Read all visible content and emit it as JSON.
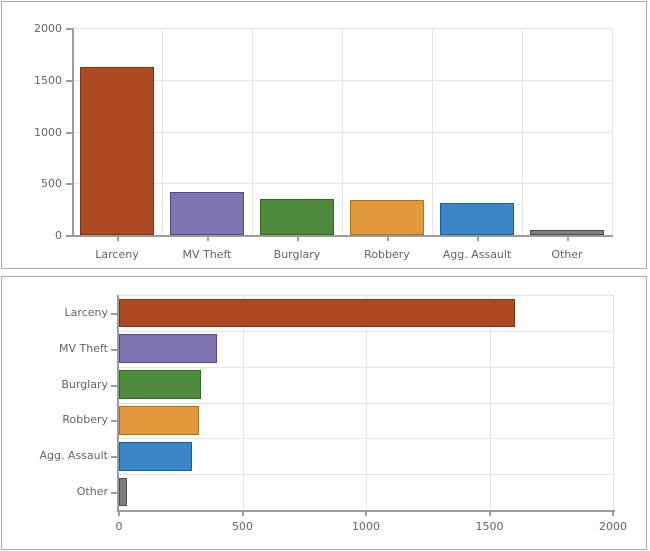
{
  "theme": {
    "background": "#ffffff",
    "panel_border": "#ababab",
    "axis_color": "#9b9b9b",
    "grid_color": "#e5e5e5",
    "label_color": "#63636b"
  },
  "series_colors": [
    {
      "category": "Larceny",
      "fill": "#ad4a24",
      "stroke": "#7e3311"
    },
    {
      "category": "MV Theft",
      "fill": "#8173b2",
      "stroke": "#55488a"
    },
    {
      "category": "Burglary",
      "fill": "#4e8a3b",
      "stroke": "#2f681f"
    },
    {
      "category": "Robbery",
      "fill": "#e2993c",
      "stroke": "#ac7213"
    },
    {
      "category": "Agg. Assault",
      "fill": "#3a86c8",
      "stroke": "#175e9e"
    },
    {
      "category": "Other",
      "fill": "#7f7f7f",
      "stroke": "#4b4b4b"
    }
  ],
  "chart_data": [
    {
      "id": "top-vertical-bar-chart",
      "type": "bar",
      "orientation": "vertical",
      "title": "",
      "xlabel": "",
      "ylabel": "",
      "categories": [
        "Larceny",
        "MV Theft",
        "Burglary",
        "Robbery",
        "Agg. Assault",
        "Other"
      ],
      "values": [
        1590,
        385,
        320,
        310,
        285,
        20
      ],
      "value_axis": {
        "min": 0,
        "max": 2000,
        "ticks": [
          0,
          500,
          1000,
          1500,
          2000
        ],
        "tick_labels": [
          "0",
          "500",
          "1000",
          "1500",
          "2000"
        ]
      },
      "grid": true,
      "legend": "none"
    },
    {
      "id": "bottom-horizontal-bar-chart",
      "type": "bar",
      "orientation": "horizontal",
      "title": "",
      "xlabel": "",
      "ylabel": "",
      "categories": [
        "Larceny",
        "MV Theft",
        "Burglary",
        "Robbery",
        "Agg. Assault",
        "Other"
      ],
      "values": [
        1590,
        385,
        320,
        310,
        285,
        20
      ],
      "value_axis": {
        "min": 0,
        "max": 2000,
        "ticks": [
          0,
          500,
          1000,
          1500,
          2000
        ],
        "tick_labels": [
          "0",
          "500",
          "1000",
          "1500",
          "2000"
        ]
      },
      "grid": true,
      "legend": "none"
    }
  ]
}
